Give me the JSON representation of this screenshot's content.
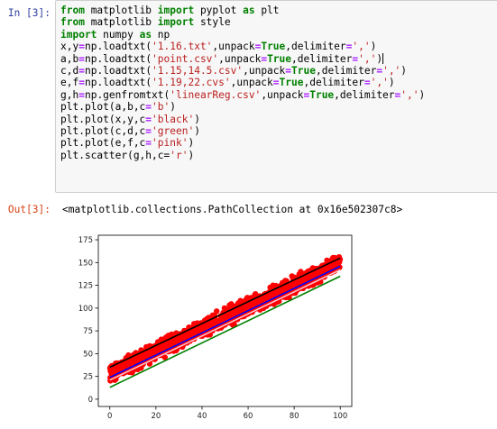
{
  "input_prompt": "In [3]:",
  "output_prompt": "Out[3]:",
  "code_lines": [
    [
      {
        "t": "from",
        "c": "kw"
      },
      {
        "t": " matplotlib "
      },
      {
        "t": "import",
        "c": "kw"
      },
      {
        "t": " pyplot "
      },
      {
        "t": "as",
        "c": "kw"
      },
      {
        "t": " plt"
      }
    ],
    [
      {
        "t": "from",
        "c": "kw"
      },
      {
        "t": " matplotlib "
      },
      {
        "t": "import",
        "c": "kw"
      },
      {
        "t": " style"
      }
    ],
    [
      {
        "t": "import",
        "c": "kw"
      },
      {
        "t": " numpy "
      },
      {
        "t": "as",
        "c": "kw"
      },
      {
        "t": " np"
      }
    ],
    [
      {
        "t": "x,y"
      },
      {
        "t": "=",
        "c": "op"
      },
      {
        "t": "np.loadtxt("
      },
      {
        "t": "'1.16.txt'",
        "c": "str"
      },
      {
        "t": ",unpack"
      },
      {
        "t": "=",
        "c": "op"
      },
      {
        "t": "True",
        "c": "kw"
      },
      {
        "t": ",delimiter"
      },
      {
        "t": "=",
        "c": "op"
      },
      {
        "t": "','",
        "c": "str"
      },
      {
        "t": ")"
      }
    ],
    [
      {
        "t": "a,b"
      },
      {
        "t": "=",
        "c": "op"
      },
      {
        "t": "np.loadtxt("
      },
      {
        "t": "'point.csv'",
        "c": "str"
      },
      {
        "t": ",unpack"
      },
      {
        "t": "=",
        "c": "op"
      },
      {
        "t": "True",
        "c": "kw"
      },
      {
        "t": ",delimiter"
      },
      {
        "t": "=",
        "c": "op"
      },
      {
        "t": "','",
        "c": "str"
      },
      {
        "t": ")"
      },
      {
        "t": "",
        "c": "cursor"
      }
    ],
    [
      {
        "t": "c,d"
      },
      {
        "t": "=",
        "c": "op"
      },
      {
        "t": "np.loadtxt("
      },
      {
        "t": "'1.15,14.5.csv'",
        "c": "str"
      },
      {
        "t": ",unpack"
      },
      {
        "t": "=",
        "c": "op"
      },
      {
        "t": "True",
        "c": "kw"
      },
      {
        "t": ",delimiter"
      },
      {
        "t": "=",
        "c": "op"
      },
      {
        "t": "','",
        "c": "str"
      },
      {
        "t": ")"
      }
    ],
    [
      {
        "t": "e,f"
      },
      {
        "t": "=",
        "c": "op"
      },
      {
        "t": "np.loadtxt("
      },
      {
        "t": "'1.19,22.cvs'",
        "c": "str"
      },
      {
        "t": ",unpack"
      },
      {
        "t": "=",
        "c": "op"
      },
      {
        "t": "True",
        "c": "kw"
      },
      {
        "t": ",delimiter"
      },
      {
        "t": "=",
        "c": "op"
      },
      {
        "t": "','",
        "c": "str"
      },
      {
        "t": ")"
      }
    ],
    [
      {
        "t": "g,h"
      },
      {
        "t": "=",
        "c": "op"
      },
      {
        "t": "np.genfromtxt("
      },
      {
        "t": "'linearReg.csv'",
        "c": "str"
      },
      {
        "t": ",unpack"
      },
      {
        "t": "=",
        "c": "op"
      },
      {
        "t": "True",
        "c": "kw"
      },
      {
        "t": ",delimiter"
      },
      {
        "t": "=",
        "c": "op"
      },
      {
        "t": "','",
        "c": "str"
      },
      {
        "t": ")"
      }
    ],
    [
      {
        "t": "plt.plot(a,b,c"
      },
      {
        "t": "=",
        "c": "op"
      },
      {
        "t": "'b'",
        "c": "str"
      },
      {
        "t": ")"
      }
    ],
    [
      {
        "t": "plt.plot(x,y,c"
      },
      {
        "t": "=",
        "c": "op"
      },
      {
        "t": "'black'",
        "c": "str"
      },
      {
        "t": ")"
      }
    ],
    [
      {
        "t": "plt.plot(c,d,c"
      },
      {
        "t": "=",
        "c": "op"
      },
      {
        "t": "'green'",
        "c": "str"
      },
      {
        "t": ")"
      }
    ],
    [
      {
        "t": "plt.plot(e,f,c"
      },
      {
        "t": "=",
        "c": "op"
      },
      {
        "t": "'pink'",
        "c": "str"
      },
      {
        "t": ")"
      }
    ],
    [
      {
        "t": "plt.scatter(g,h,c"
      },
      {
        "t": "="
      },
      {
        "t": "'r'",
        "c": "str"
      },
      {
        "t": ")"
      }
    ]
  ],
  "output_text": "<matplotlib.collections.PathCollection at 0x16e502307c8>",
  "chart_data": {
    "type": "scatter",
    "xlim": [
      -5,
      105
    ],
    "ylim": [
      -8,
      180
    ],
    "x_ticks": [
      0,
      20,
      40,
      60,
      80,
      100
    ],
    "y_ticks": [
      0,
      25,
      50,
      75,
      100,
      125,
      150,
      175
    ],
    "grid": false,
    "series": [
      {
        "kind": "scatter",
        "color": "#ff0000",
        "x_range": [
          0,
          100
        ],
        "trend": {
          "slope": 1.22,
          "intercept": 28
        },
        "spread": 14
      },
      {
        "kind": "line",
        "color": "#000000",
        "points": [
          [
            0,
            35
          ],
          [
            100,
            155
          ]
        ]
      },
      {
        "kind": "line",
        "color": "#008000",
        "points": [
          [
            0,
            13
          ],
          [
            100,
            135
          ]
        ]
      },
      {
        "kind": "line",
        "color": "#0000ff",
        "points": [
          [
            0,
            24
          ],
          [
            100,
            146
          ]
        ]
      },
      {
        "kind": "line",
        "color": "#ffc0cb",
        "points": [
          [
            0,
            21
          ],
          [
            100,
            142
          ]
        ]
      }
    ]
  }
}
